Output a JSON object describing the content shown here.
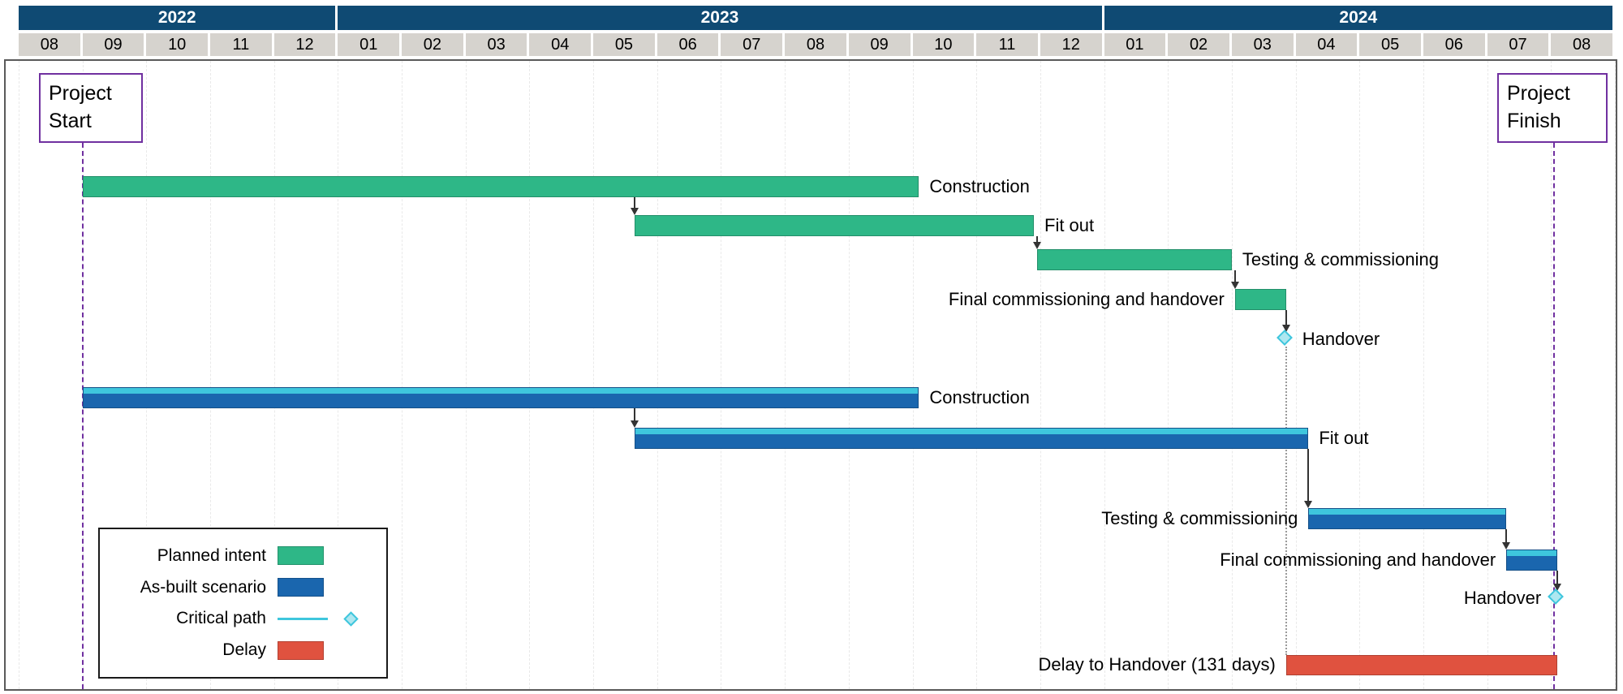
{
  "colors": {
    "navy": "#0F4A73",
    "month_gray": "#D6D3CE",
    "planned_green": "#2EB787",
    "asbuilt_blue": "#1A66AE",
    "critical_cyan": "#3EC6DD",
    "delay_red": "#E0523F",
    "marker_purple": "#7030A0"
  },
  "timeline": {
    "years": [
      {
        "label": "2022",
        "months": 5
      },
      {
        "label": "2023",
        "months": 12
      },
      {
        "label": "2024",
        "months": 8
      }
    ],
    "months": [
      "08",
      "09",
      "10",
      "11",
      "12",
      "01",
      "02",
      "03",
      "04",
      "05",
      "06",
      "07",
      "08",
      "09",
      "10",
      "11",
      "12",
      "01",
      "02",
      "03",
      "04",
      "05",
      "06",
      "07",
      "08"
    ]
  },
  "markers": {
    "project_start": "Project Start",
    "project_finish": "Project Finish"
  },
  "legend": {
    "items": [
      {
        "label": "Planned intent",
        "swatch": "bar",
        "color": "#2EB787"
      },
      {
        "label": "As-built scenario",
        "swatch": "bar",
        "color": "#1A66AE"
      },
      {
        "label": "Critical path",
        "swatch": "line-diamond",
        "color": "#3EC6DD"
      },
      {
        "label": "Delay",
        "swatch": "bar",
        "color": "#E0523F"
      }
    ]
  },
  "chart_data": {
    "type": "gantt",
    "axis": {
      "unit": "months",
      "start": "2022-08",
      "end": "2024-08",
      "note": "offsets are months measured from 2022-08 = 0"
    },
    "planned": {
      "name": "Planned intent",
      "tasks": [
        {
          "name": "Construction",
          "start": 1.0,
          "end": 14.1
        },
        {
          "name": "Fit out",
          "start": 9.65,
          "end": 15.9
        },
        {
          "name": "Testing & commissioning",
          "start": 15.95,
          "end": 19.0
        },
        {
          "name": "Final commissioning and handover",
          "start": 19.05,
          "end": 19.85
        }
      ],
      "milestone": {
        "name": "Handover",
        "at": 19.85
      }
    },
    "asbuilt": {
      "name": "As-built scenario",
      "tasks": [
        {
          "name": "Construction",
          "start": 1.0,
          "end": 14.1
        },
        {
          "name": "Fit out",
          "start": 9.65,
          "end": 20.2
        },
        {
          "name": "Testing & commissioning",
          "start": 20.2,
          "end": 23.3
        },
        {
          "name": "Final commissioning and handover",
          "start": 23.3,
          "end": 24.1
        }
      ],
      "milestone": {
        "name": "Handover",
        "at": 24.1
      }
    },
    "delay": {
      "label": "Delay to Handover (131 days)",
      "start": 19.85,
      "end": 24.1
    },
    "project_start_at": 1.0,
    "project_finish_at": 24.05
  }
}
